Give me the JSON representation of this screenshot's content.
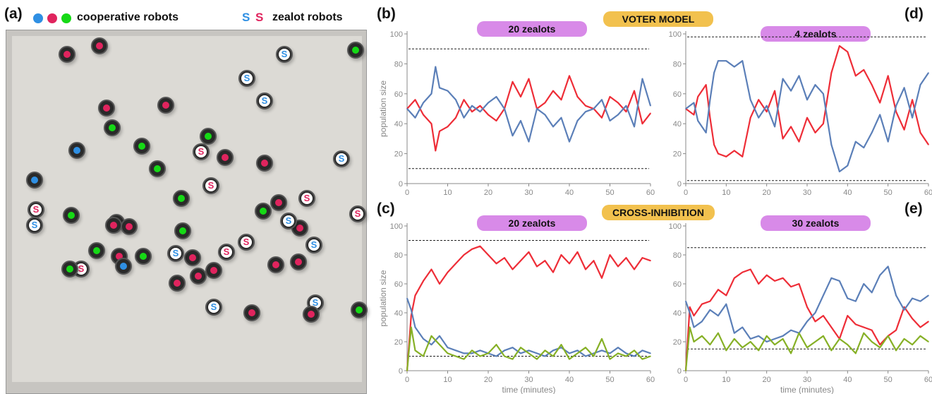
{
  "labels": {
    "panel_a": "(a)",
    "panel_b": "(b)",
    "panel_c": "(c)",
    "panel_d": "(d)",
    "panel_e": "(e)",
    "cooperative": "cooperative robots",
    "zealot": "zealot robots",
    "zealot_glyph": "S",
    "voter_model": "VOTER MODEL",
    "cross_inhibition": "CROSS-INHIBITION"
  },
  "colors": {
    "blue": "#5b7fb8",
    "red": "#ee2d37",
    "green": "#86b026",
    "dot_blue": "#2f8fe3",
    "dot_red": "#e0245e",
    "dot_green": "#16d916",
    "pill_purple": "#d88ae8",
    "pill_orange": "#f2c14e"
  },
  "arena": {
    "robots": [
      {
        "type": "coop",
        "color": "red"
      },
      {
        "type": "coop",
        "color": "red"
      },
      {
        "type": "coop",
        "color": "green"
      },
      {
        "type": "zealot",
        "color": "blue"
      },
      {
        "type": "zealot",
        "color": "blue"
      },
      {
        "type": "zealot",
        "color": "blue"
      },
      {
        "type": "coop",
        "color": "red"
      },
      {
        "type": "coop",
        "color": "red"
      },
      {
        "type": "coop",
        "color": "green"
      },
      {
        "type": "coop",
        "color": "green"
      },
      {
        "type": "coop",
        "color": "blue"
      },
      {
        "type": "zealot",
        "color": "red"
      },
      {
        "type": "coop",
        "color": "red"
      },
      {
        "type": "coop",
        "color": "red"
      },
      {
        "type": "coop",
        "color": "green"
      },
      {
        "type": "zealot",
        "color": "blue"
      },
      {
        "type": "coop",
        "color": "blue"
      },
      {
        "type": "zealot",
        "color": "red"
      },
      {
        "type": "coop",
        "color": "green"
      },
      {
        "type": "coop",
        "color": "red"
      },
      {
        "type": "zealot",
        "color": "red"
      },
      {
        "type": "coop",
        "color": "green"
      },
      {
        "type": "coop",
        "color": "green"
      },
      {
        "type": "zealot",
        "color": "blue"
      },
      {
        "type": "zealot",
        "color": "red"
      },
      {
        "type": "coop",
        "color": "red"
      },
      {
        "type": "coop",
        "color": "green"
      },
      {
        "type": "zealot",
        "color": "red"
      },
      {
        "type": "coop",
        "color": "red"
      },
      {
        "type": "coop",
        "color": "green"
      },
      {
        "type": "zealot",
        "color": "blue"
      },
      {
        "type": "coop",
        "color": "red"
      },
      {
        "type": "coop",
        "color": "red"
      },
      {
        "type": "zealot",
        "color": "red"
      },
      {
        "type": "coop",
        "color": "green"
      },
      {
        "type": "coop",
        "color": "red"
      },
      {
        "type": "zealot",
        "color": "red"
      },
      {
        "type": "coop",
        "color": "red"
      },
      {
        "type": "coop",
        "color": "green"
      },
      {
        "type": "zealot",
        "color": "blue"
      },
      {
        "type": "coop",
        "color": "red"
      },
      {
        "type": "coop",
        "color": "blue"
      },
      {
        "type": "coop",
        "color": "red"
      },
      {
        "type": "zealot",
        "color": "blue"
      },
      {
        "type": "coop",
        "color": "red"
      },
      {
        "type": "coop",
        "color": "red"
      },
      {
        "type": "zealot",
        "color": "red"
      },
      {
        "type": "coop",
        "color": "green"
      },
      {
        "type": "coop",
        "color": "red"
      },
      {
        "type": "zealot",
        "color": "blue"
      },
      {
        "type": "coop",
        "color": "green"
      },
      {
        "type": "coop",
        "color": "red"
      },
      {
        "type": "coop",
        "color": "red"
      },
      {
        "type": "zealot",
        "color": "blue"
      }
    ]
  },
  "chart_data": [
    {
      "panel": "(b)",
      "type": "line",
      "title": "20 zealots",
      "ylabel": "population size",
      "xlabel": "",
      "xlim": [
        0,
        60
      ],
      "ylim": [
        0,
        100
      ],
      "xticks": [
        0,
        10,
        20,
        30,
        40,
        50,
        60
      ],
      "yticks": [
        0,
        20,
        40,
        60,
        80,
        100
      ],
      "hlines": [
        90,
        10
      ],
      "series": [
        {
          "color": "red",
          "x": [
            0,
            2,
            4,
            6,
            7,
            8,
            10,
            12,
            14,
            16,
            18,
            20,
            22,
            24,
            26,
            28,
            30,
            32,
            34,
            36,
            38,
            40,
            42,
            44,
            46,
            48,
            50,
            52,
            54,
            56,
            58,
            60
          ],
          "y": [
            50,
            56,
            46,
            40,
            22,
            35,
            38,
            44,
            56,
            48,
            52,
            46,
            42,
            50,
            68,
            58,
            70,
            50,
            54,
            62,
            56,
            72,
            58,
            52,
            50,
            44,
            58,
            54,
            48,
            62,
            40,
            47
          ]
        },
        {
          "color": "blue",
          "x": [
            0,
            2,
            4,
            6,
            7,
            8,
            10,
            12,
            14,
            16,
            18,
            20,
            22,
            24,
            26,
            28,
            30,
            32,
            34,
            36,
            38,
            40,
            42,
            44,
            46,
            48,
            50,
            52,
            54,
            56,
            58,
            60
          ],
          "y": [
            50,
            44,
            54,
            60,
            78,
            64,
            62,
            56,
            44,
            52,
            48,
            54,
            58,
            50,
            32,
            42,
            28,
            50,
            46,
            38,
            44,
            28,
            42,
            48,
            50,
            56,
            42,
            46,
            52,
            38,
            70,
            52
          ]
        }
      ]
    },
    {
      "panel": "(d)",
      "type": "line",
      "title": "4 zealots",
      "ylabel": "",
      "xlabel": "",
      "xlim": [
        0,
        60
      ],
      "ylim": [
        0,
        100
      ],
      "xticks": [
        0,
        10,
        20,
        30,
        40,
        50,
        60
      ],
      "yticks": [
        0,
        20,
        40,
        60,
        80,
        100
      ],
      "hlines": [
        98,
        2
      ],
      "series": [
        {
          "color": "red",
          "x": [
            0,
            2,
            3,
            5,
            6,
            7,
            8,
            10,
            12,
            14,
            16,
            18,
            20,
            22,
            24,
            26,
            28,
            30,
            32,
            34,
            36,
            38,
            40,
            42,
            44,
            46,
            48,
            50,
            52,
            54,
            56,
            58,
            60
          ],
          "y": [
            50,
            46,
            58,
            66,
            44,
            26,
            20,
            18,
            22,
            18,
            44,
            56,
            48,
            62,
            30,
            38,
            28,
            44,
            34,
            40,
            74,
            92,
            88,
            72,
            76,
            66,
            54,
            72,
            48,
            36,
            56,
            34,
            26
          ]
        },
        {
          "color": "blue",
          "x": [
            0,
            2,
            3,
            5,
            6,
            7,
            8,
            10,
            12,
            14,
            16,
            18,
            20,
            22,
            24,
            26,
            28,
            30,
            32,
            34,
            36,
            38,
            40,
            42,
            44,
            46,
            48,
            50,
            52,
            54,
            56,
            58,
            60
          ],
          "y": [
            50,
            54,
            42,
            34,
            56,
            74,
            82,
            82,
            78,
            82,
            56,
            44,
            52,
            38,
            70,
            62,
            72,
            56,
            66,
            60,
            26,
            8,
            12,
            28,
            24,
            34,
            46,
            28,
            52,
            64,
            44,
            66,
            74
          ]
        }
      ]
    },
    {
      "panel": "(c)",
      "type": "line",
      "title": "20 zealots",
      "ylabel": "population size",
      "xlabel": "time (minutes)",
      "xlim": [
        0,
        60
      ],
      "ylim": [
        0,
        100
      ],
      "xticks": [
        0,
        10,
        20,
        30,
        40,
        50,
        60
      ],
      "yticks": [
        0,
        20,
        40,
        60,
        80,
        100
      ],
      "hlines": [
        90,
        10
      ],
      "series": [
        {
          "color": "red",
          "x": [
            0,
            1,
            2,
            4,
            6,
            8,
            10,
            12,
            14,
            16,
            18,
            20,
            22,
            24,
            26,
            28,
            30,
            32,
            34,
            36,
            38,
            40,
            42,
            44,
            46,
            48,
            50,
            52,
            54,
            56,
            58,
            60
          ],
          "y": [
            0,
            38,
            52,
            62,
            70,
            60,
            68,
            74,
            80,
            84,
            86,
            80,
            74,
            78,
            70,
            76,
            82,
            72,
            76,
            68,
            80,
            74,
            82,
            70,
            76,
            64,
            80,
            72,
            78,
            70,
            78,
            76
          ]
        },
        {
          "color": "blue",
          "x": [
            0,
            1,
            2,
            4,
            6,
            8,
            10,
            12,
            14,
            16,
            18,
            20,
            22,
            24,
            26,
            28,
            30,
            32,
            34,
            36,
            38,
            40,
            42,
            44,
            46,
            48,
            50,
            52,
            54,
            56,
            58,
            60
          ],
          "y": [
            50,
            42,
            30,
            22,
            18,
            24,
            16,
            14,
            12,
            12,
            14,
            12,
            10,
            14,
            16,
            12,
            14,
            12,
            10,
            14,
            16,
            12,
            14,
            10,
            12,
            14,
            12,
            16,
            12,
            10,
            14,
            12
          ]
        },
        {
          "color": "green",
          "x": [
            0,
            1,
            2,
            4,
            6,
            8,
            10,
            12,
            14,
            16,
            18,
            20,
            22,
            24,
            26,
            28,
            30,
            32,
            34,
            36,
            38,
            40,
            42,
            44,
            46,
            48,
            50,
            52,
            54,
            56,
            58,
            60
          ],
          "y": [
            0,
            30,
            14,
            10,
            24,
            18,
            12,
            10,
            8,
            14,
            10,
            12,
            18,
            10,
            8,
            16,
            12,
            8,
            14,
            10,
            18,
            8,
            12,
            16,
            10,
            22,
            8,
            12,
            10,
            14,
            8,
            10
          ]
        }
      ]
    },
    {
      "panel": "(e)",
      "type": "line",
      "title": "30 zealots",
      "ylabel": "",
      "xlabel": "time (minutes)",
      "xlim": [
        0,
        60
      ],
      "ylim": [
        0,
        100
      ],
      "xticks": [
        0,
        10,
        20,
        30,
        40,
        50,
        60
      ],
      "yticks": [
        0,
        20,
        40,
        60,
        80,
        100
      ],
      "hlines": [
        85,
        15
      ],
      "series": [
        {
          "color": "red",
          "x": [
            0,
            1,
            2,
            4,
            6,
            8,
            10,
            12,
            14,
            16,
            18,
            20,
            22,
            24,
            26,
            28,
            30,
            32,
            34,
            36,
            38,
            40,
            42,
            44,
            46,
            48,
            50,
            52,
            54,
            56,
            58,
            60
          ],
          "y": [
            0,
            44,
            38,
            46,
            48,
            56,
            52,
            64,
            68,
            70,
            60,
            66,
            62,
            64,
            58,
            60,
            44,
            34,
            38,
            30,
            22,
            38,
            32,
            30,
            28,
            18,
            24,
            28,
            44,
            36,
            30,
            34
          ]
        },
        {
          "color": "blue",
          "x": [
            0,
            1,
            2,
            4,
            6,
            8,
            10,
            12,
            14,
            16,
            18,
            20,
            22,
            24,
            26,
            28,
            30,
            32,
            34,
            36,
            38,
            40,
            42,
            44,
            46,
            48,
            50,
            52,
            54,
            56,
            58,
            60
          ],
          "y": [
            48,
            40,
            30,
            34,
            42,
            38,
            46,
            26,
            30,
            22,
            24,
            20,
            22,
            24,
            28,
            26,
            34,
            40,
            52,
            64,
            62,
            50,
            48,
            60,
            54,
            66,
            72,
            52,
            42,
            50,
            48,
            52
          ]
        },
        {
          "color": "green",
          "x": [
            0,
            1,
            2,
            4,
            6,
            8,
            10,
            12,
            14,
            16,
            18,
            20,
            22,
            24,
            26,
            28,
            30,
            32,
            34,
            36,
            38,
            40,
            42,
            44,
            46,
            48,
            50,
            52,
            54,
            56,
            58,
            60
          ],
          "y": [
            0,
            30,
            20,
            24,
            18,
            26,
            14,
            22,
            16,
            20,
            14,
            24,
            18,
            22,
            12,
            26,
            16,
            20,
            24,
            14,
            22,
            18,
            12,
            26,
            20,
            16,
            24,
            14,
            22,
            18,
            24,
            20
          ]
        }
      ]
    }
  ]
}
